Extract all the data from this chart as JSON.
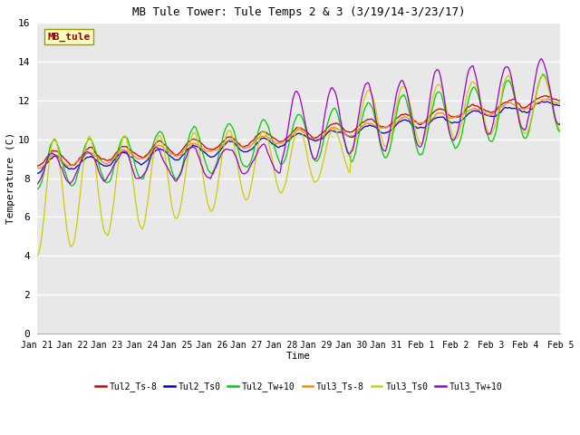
{
  "title": "MB Tule Tower: Tule Temps 2 & 3 (3/19/14-3/23/17)",
  "xlabel": "Time",
  "ylabel": "Temperature (C)",
  "ylim": [
    0,
    16
  ],
  "yticks": [
    0,
    2,
    4,
    6,
    8,
    10,
    12,
    14,
    16
  ],
  "plot_bg": "#e8e8e8",
  "watermark_text": "MB_tule",
  "watermark_color": "#8b0000",
  "watermark_bg": "#ffffc0",
  "series": [
    {
      "label": "Tul2_Ts-8",
      "color": "#cc0000"
    },
    {
      "label": "Tul2_Ts0",
      "color": "#0000cc"
    },
    {
      "label": "Tul2_Tw+10",
      "color": "#00cc00"
    },
    {
      "label": "Tul3_Ts-8",
      "color": "#ff8800"
    },
    {
      "label": "Tul3_Ts0",
      "color": "#cccc00"
    },
    {
      "label": "Tul3_Tw+10",
      "color": "#9900cc"
    }
  ],
  "xtick_labels": [
    "Jan 21",
    "Jan 22",
    "Jan 23",
    "Jan 24",
    "Jan 25",
    "Jan 26",
    "Jan 27",
    "Jan 28",
    "Jan 29",
    "Jan 30",
    "Jan 31",
    "Feb 1",
    "Feb 2",
    "Feb 3",
    "Feb 4",
    "Feb 5"
  ],
  "font": "monospace"
}
